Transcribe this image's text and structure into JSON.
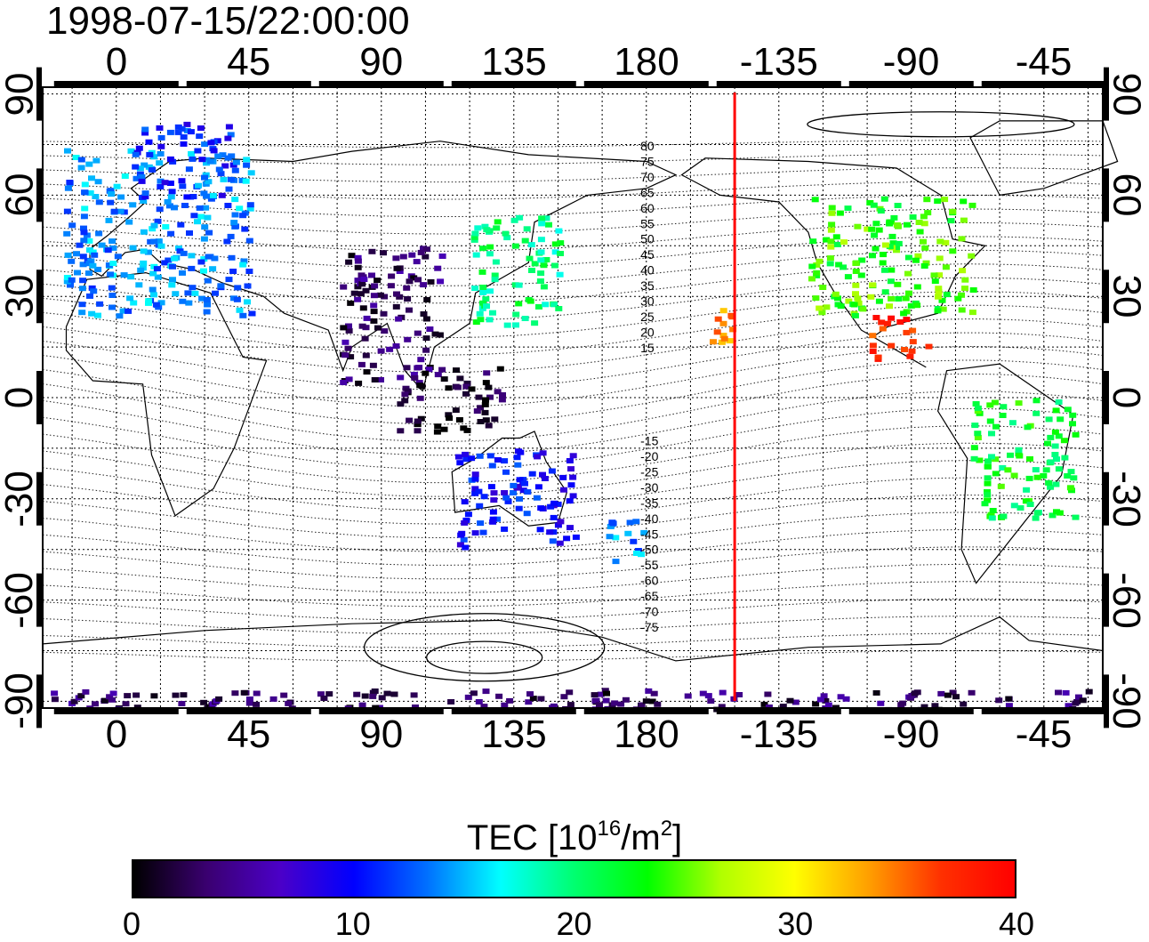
{
  "title": "1998-07-15/22:00:00",
  "x_axis": {
    "top_labels": [
      "0",
      "45",
      "90",
      "135",
      "180",
      "-135",
      "-90",
      "-45"
    ],
    "bottom_labels": [
      "0",
      "45",
      "90",
      "135",
      "180",
      "-135",
      "-90",
      "-45"
    ],
    "lon_values": [
      0,
      45,
      90,
      135,
      180,
      225,
      270,
      315
    ],
    "range": [
      -25,
      335
    ]
  },
  "y_axis": {
    "left_labels": [
      "90",
      "60",
      "30",
      "0",
      "-30",
      "-60",
      "-90"
    ],
    "right_labels": [
      "90",
      "60",
      "30",
      "0",
      "-30",
      "-60",
      "-90"
    ],
    "lat_values": [
      90,
      60,
      30,
      0,
      -30,
      -60,
      -90
    ],
    "range": [
      -92,
      92
    ]
  },
  "grid": true,
  "contour_labels": {
    "north": [
      "80",
      "75",
      "70",
      "65",
      "60",
      "55",
      "50",
      "45",
      "40",
      "35",
      "30",
      "25",
      "20",
      "15"
    ],
    "south": [
      "-15",
      "-20",
      "-25",
      "-30",
      "-35",
      "-40",
      "-45",
      "-50",
      "-55",
      "-60",
      "-65",
      "-70",
      "-75"
    ],
    "north_lat": [
      80,
      75,
      70,
      65,
      60,
      55,
      50,
      45,
      40,
      35,
      30,
      25,
      20,
      15
    ],
    "south_lat": [
      -15,
      -20,
      -25,
      -30,
      -35,
      -40,
      -45,
      -50,
      -55,
      -60,
      -65,
      -70,
      -75
    ]
  },
  "terminator": {
    "lon": 210,
    "color": "#ff0000"
  },
  "colorbar": {
    "title_text": "TEC  [10",
    "title_exp": "16",
    "title_unit": "/m",
    "title_exp2": "2",
    "title_close": "]",
    "labels": [
      "0",
      "10",
      "20",
      "30",
      "40"
    ],
    "values": [
      0,
      10,
      20,
      30,
      40
    ],
    "range": [
      0,
      40
    ],
    "colors": [
      "#000000",
      "#3a0070",
      "#4b00c8",
      "#0000ff",
      "#0070ff",
      "#00ffff",
      "#00ff70",
      "#00ff00",
      "#b0ff00",
      "#ffff00",
      "#ffa000",
      "#ff3000",
      "#ff0000"
    ]
  },
  "tec_regions": [
    {
      "name": "europe",
      "lon": [
        -18,
        45
      ],
      "lat": [
        25,
        75
      ],
      "tec": 14
    },
    {
      "name": "scandinavia",
      "lon": [
        5,
        40
      ],
      "lat": [
        60,
        82
      ],
      "tec": 11
    },
    {
      "name": "east-asia",
      "lon": [
        120,
        150
      ],
      "lat": [
        22,
        55
      ],
      "tec": 20
    },
    {
      "name": "north-america",
      "lon": [
        235,
        290
      ],
      "lat": [
        25,
        60
      ],
      "tec": 24
    },
    {
      "name": "central-america",
      "lon": [
        255,
        275
      ],
      "lat": [
        12,
        25
      ],
      "tec": 37
    },
    {
      "name": "hawaii",
      "lon": [
        200,
        210
      ],
      "lat": [
        17,
        27
      ],
      "tec": 34
    },
    {
      "name": "south-america",
      "lon": [
        290,
        325
      ],
      "lat": [
        -35,
        0
      ],
      "tec": 22
    },
    {
      "name": "australia",
      "lon": [
        115,
        155
      ],
      "lat": [
        -45,
        -15
      ],
      "tec": 10
    },
    {
      "name": "new-zealand",
      "lon": [
        165,
        180
      ],
      "lat": [
        -48,
        -35
      ],
      "tec": 14
    },
    {
      "name": "antarctica",
      "lon": [
        -25,
        335
      ],
      "lat": [
        -92,
        -86
      ],
      "tec": 3
    },
    {
      "name": "india-tibet",
      "lon": [
        75,
        110
      ],
      "lat": [
        5,
        45
      ],
      "tec": 3
    },
    {
      "name": "southeast-asia",
      "lon": [
        95,
        130
      ],
      "lat": [
        -10,
        10
      ],
      "tec": 1
    }
  ]
}
